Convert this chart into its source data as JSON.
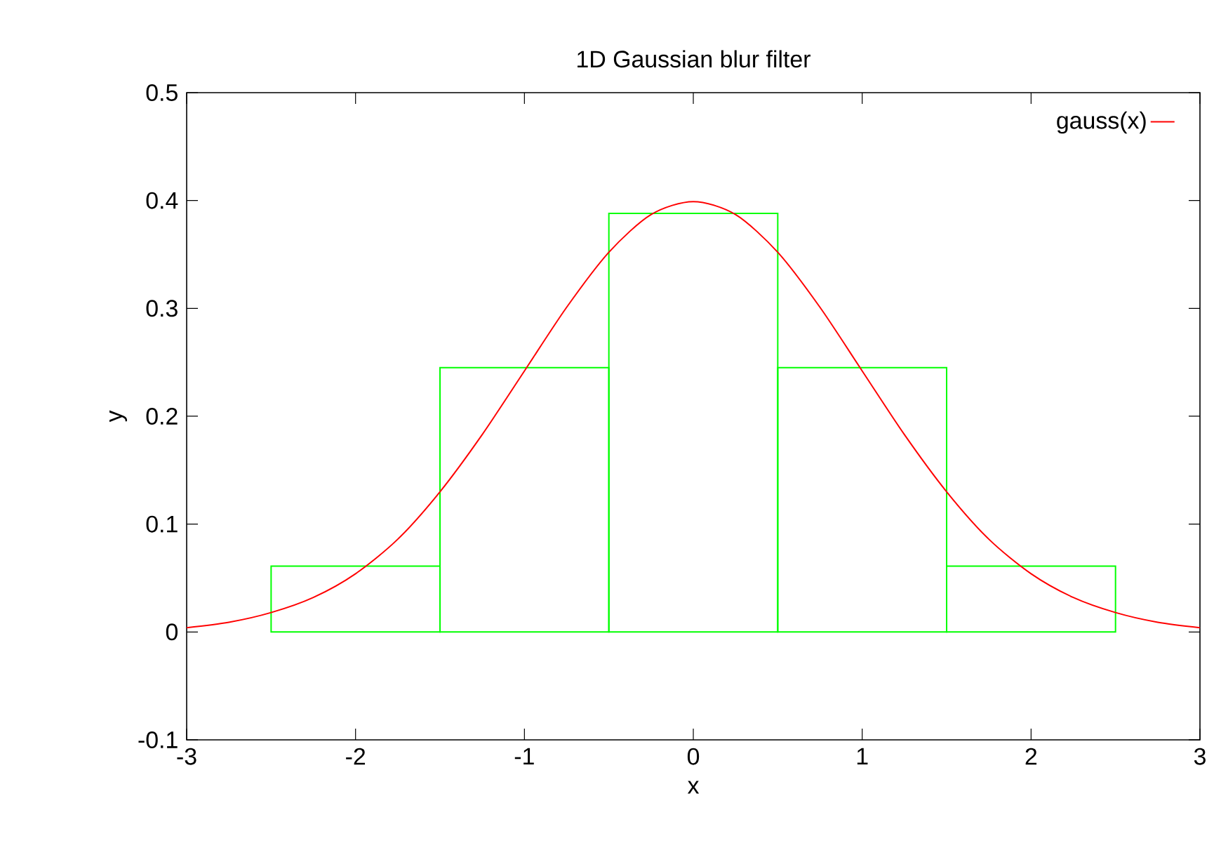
{
  "chart_data": {
    "type": "histogram",
    "title": "1D Gaussian blur filter",
    "xlabel": "x",
    "ylabel": "y",
    "xlim": [
      -3,
      3
    ],
    "ylim": [
      -0.1,
      0.5
    ],
    "xticks": [
      -3,
      -2,
      -1,
      0,
      1,
      2,
      3
    ],
    "yticks": [
      -0.1,
      0,
      0.1,
      0.2,
      0.3,
      0.4,
      0.5
    ],
    "grid": false,
    "legend": "top right",
    "series": [
      {
        "color": "#00ff00",
        "bins": [
          -2.5,
          -1.5,
          -0.5,
          0.5,
          1.5,
          2.5
        ],
        "values": [
          0.061,
          0.245,
          0.388,
          0.245,
          0.061
        ]
      },
      {
        "type": "line",
        "name": "gauss(x)",
        "color": "#ff0000",
        "x": [
          -3,
          -2.75,
          -2.5,
          -2.25,
          -2,
          -1.75,
          -1.5,
          -1.25,
          -1,
          -0.75,
          -0.5,
          -0.25,
          0,
          0.25,
          0.5,
          0.75,
          1,
          1.25,
          1.5,
          1.75,
          2,
          2.25,
          2.5,
          2.75,
          3
        ],
        "values": [
          0.004,
          0.009,
          0.018,
          0.032,
          0.054,
          0.086,
          0.13,
          0.183,
          0.242,
          0.301,
          0.352,
          0.387,
          0.399,
          0.387,
          0.352,
          0.301,
          0.242,
          0.183,
          0.13,
          0.086,
          0.054,
          0.032,
          0.018,
          0.009,
          0.004
        ]
      }
    ]
  }
}
